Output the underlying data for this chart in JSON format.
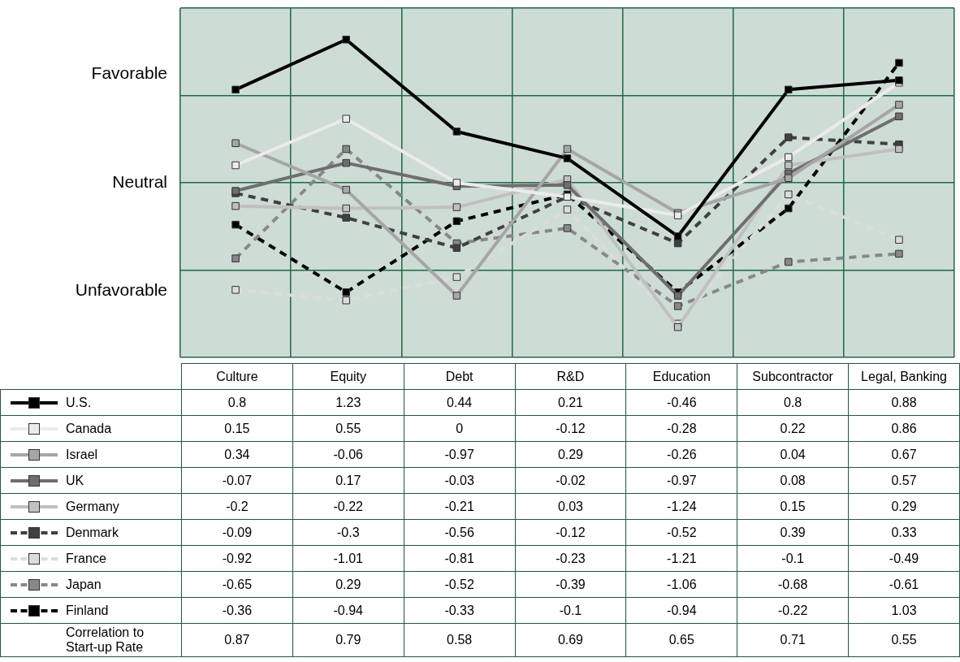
{
  "chart_data": {
    "type": "line",
    "categories": [
      "Culture",
      "Equity",
      "Debt",
      "R&D",
      "Education",
      "Subcontractor",
      "Legal, Banking"
    ],
    "series": [
      {
        "name": "U.S.",
        "color": "#000000",
        "line_style": "solid",
        "values": [
          0.8,
          1.23,
          0.44,
          0.21,
          -0.46,
          0.8,
          0.88
        ]
      },
      {
        "name": "Canada",
        "color": "#ebebeb",
        "line_style": "solid",
        "values": [
          0.15,
          0.55,
          0,
          -0.12,
          -0.28,
          0.22,
          0.86
        ]
      },
      {
        "name": "Israel",
        "color": "#a6a6a6",
        "line_style": "solid",
        "values": [
          0.34,
          -0.06,
          -0.97,
          0.29,
          -0.26,
          0.04,
          0.67
        ]
      },
      {
        "name": "UK",
        "color": "#6e6e6e",
        "line_style": "solid",
        "values": [
          -0.07,
          0.17,
          -0.03,
          -0.02,
          -0.97,
          0.08,
          0.57
        ]
      },
      {
        "name": "Germany",
        "color": "#c0c0c0",
        "line_style": "solid",
        "values": [
          -0.2,
          -0.22,
          -0.21,
          0.03,
          -1.24,
          0.15,
          0.29
        ]
      },
      {
        "name": "Denmark",
        "color": "#404040",
        "line_style": "dashed",
        "values": [
          -0.09,
          -0.3,
          -0.56,
          -0.12,
          -0.52,
          0.39,
          0.33
        ]
      },
      {
        "name": "France",
        "color": "#dcdcdc",
        "line_style": "dashed",
        "values": [
          -0.92,
          -1.01,
          -0.81,
          -0.23,
          -1.21,
          -0.1,
          -0.49
        ]
      },
      {
        "name": "Japan",
        "color": "#888888",
        "line_style": "dashed",
        "values": [
          -0.65,
          0.29,
          -0.52,
          -0.39,
          -1.06,
          -0.68,
          -0.61
        ]
      },
      {
        "name": "Finland",
        "color": "#000000",
        "line_style": "dashed",
        "values": [
          -0.36,
          -0.94,
          -0.33,
          -0.1,
          -0.94,
          -0.22,
          1.03
        ]
      }
    ],
    "ylim": [
      -1.5,
      1.5
    ],
    "yticks": [
      {
        "value": -1.5,
        "label": null
      },
      {
        "value": -0.75,
        "label": null
      },
      {
        "value": 0,
        "label": null
      },
      {
        "value": 0.75,
        "label": null
      },
      {
        "value": 1.5,
        "label": null
      }
    ],
    "grid": true,
    "marker": "square",
    "legend": "bottom",
    "data_labels": true,
    "annotations": [
      "Favorable",
      "Neutral",
      "Unfavorable",
      "Correlation to Start-up Rate",
      "0.87",
      "0.79",
      "0.58",
      "0.69",
      "0.65",
      "0.71",
      "0.55"
    ]
  }
}
